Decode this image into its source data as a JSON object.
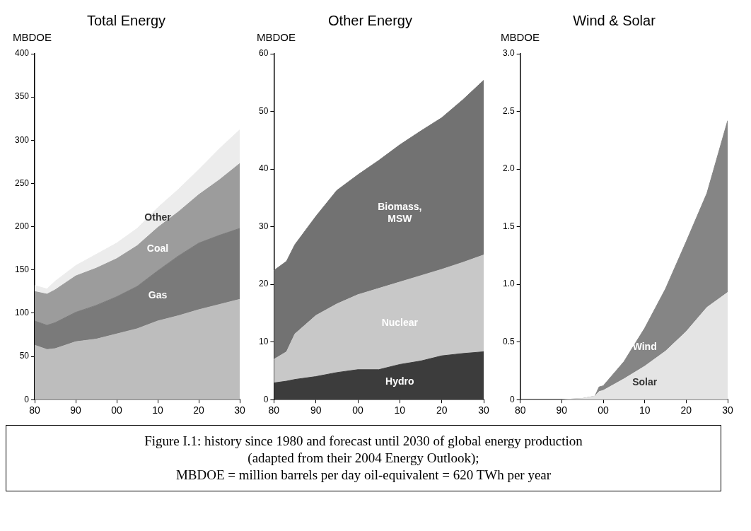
{
  "chart_data": [
    {
      "type": "area",
      "title": "Total Energy",
      "ylabel": "MBDOE",
      "stacked": true,
      "legend": false,
      "grid": false,
      "x": [
        1980,
        1983,
        1985,
        1990,
        1995,
        2000,
        2005,
        2010,
        2015,
        2020,
        2025,
        2030
      ],
      "xlim": [
        1980,
        2030
      ],
      "xticks": [
        {
          "value": 1980,
          "label": "80"
        },
        {
          "value": 1990,
          "label": "90"
        },
        {
          "value": 2000,
          "label": "00"
        },
        {
          "value": 2010,
          "label": "10"
        },
        {
          "value": 2020,
          "label": "20"
        },
        {
          "value": 2030,
          "label": "30"
        }
      ],
      "ylim": [
        0,
        400
      ],
      "yticks": [
        0,
        50,
        100,
        150,
        200,
        250,
        300,
        350,
        400
      ],
      "series": [
        {
          "color": "#bdbdbd",
          "values": [
            63,
            58,
            59,
            67,
            70,
            76,
            82,
            91,
            97,
            104,
            110,
            116
          ]
        },
        {
          "name": "Gas",
          "color": "#7a7a7a",
          "values": [
            28,
            28,
            30,
            34,
            39,
            43,
            49,
            58,
            69,
            77,
            80,
            82
          ]
        },
        {
          "name": "Coal",
          "color": "#9c9c9c",
          "values": [
            34,
            36,
            38,
            42,
            43,
            44,
            47,
            50,
            51,
            56,
            64,
            75
          ]
        },
        {
          "name": "Other",
          "color": "#ececec",
          "values": [
            7,
            6,
            10,
            12,
            16,
            18,
            20,
            23,
            26,
            29,
            36,
            39
          ]
        }
      ],
      "annotations": [
        "Figure I.1: history since 1980 and forecast until 2030 of global energy production",
        "(adapted from their 2004 Energy Outlook);",
        "MBDOE = million barrels per day oil-equivalent = 620 TWh per year"
      ]
    },
    {
      "type": "area",
      "title": "Other Energy",
      "ylabel": "MBDOE",
      "stacked": true,
      "legend": false,
      "grid": false,
      "x": [
        1980,
        1983,
        1985,
        1990,
        1995,
        2000,
        2005,
        2010,
        2015,
        2020,
        2025,
        2030
      ],
      "xlim": [
        1980,
        2030
      ],
      "xticks": [
        {
          "value": 1980,
          "label": "80"
        },
        {
          "value": 1990,
          "label": "90"
        },
        {
          "value": 2000,
          "label": "00"
        },
        {
          "value": 2010,
          "label": "10"
        },
        {
          "value": 2020,
          "label": "20"
        },
        {
          "value": 2030,
          "label": "30"
        }
      ],
      "ylim": [
        0,
        60
      ],
      "yticks": [
        0,
        10,
        20,
        30,
        40,
        50,
        60
      ],
      "series": [
        {
          "name": "Hydro",
          "color": "#3c3c3c",
          "values": [
            2.9,
            3.2,
            3.5,
            4.0,
            4.7,
            5.2,
            5.2,
            6.1,
            6.7,
            7.6,
            8.0,
            8.3
          ]
        },
        {
          "name": "Nuclear",
          "color": "#c8c8c8",
          "values": [
            4.1,
            5.1,
            7.9,
            10.6,
            11.9,
            13.0,
            14.1,
            14.3,
            14.8,
            15.0,
            15.8,
            16.8
          ]
        },
        {
          "name": "Biomass, MSW",
          "color": "#727272",
          "values": [
            15.4,
            15.7,
            15.5,
            17.2,
            19.7,
            20.8,
            22.2,
            23.8,
            25.1,
            26.3,
            28.2,
            30.3
          ]
        }
      ]
    },
    {
      "type": "area",
      "title": "Wind & Solar",
      "ylabel": "MBDOE",
      "stacked": true,
      "legend": false,
      "grid": false,
      "x": [
        1980,
        1990,
        1995,
        1998,
        1999,
        2000,
        2005,
        2010,
        2015,
        2020,
        2025,
        2030
      ],
      "xlim": [
        1980,
        2030
      ],
      "xticks": [
        {
          "value": 1980,
          "label": "80"
        },
        {
          "value": 1990,
          "label": "90"
        },
        {
          "value": 2000,
          "label": "00"
        },
        {
          "value": 2010,
          "label": "10"
        },
        {
          "value": 2020,
          "label": "20"
        },
        {
          "value": 2030,
          "label": "30"
        }
      ],
      "ylim": [
        0,
        3
      ],
      "yticks": [
        0,
        0.5,
        {
          "value": 1,
          "label": "1.0"
        },
        1.5,
        {
          "value": 2,
          "label": "2.0"
        },
        2.5,
        {
          "value": 3,
          "label": "3.0"
        }
      ],
      "series": [
        {
          "name": "Solar",
          "color": "#e4e4e4",
          "values": [
            0,
            0,
            0.01,
            0.03,
            0.07,
            0.08,
            0.18,
            0.29,
            0.42,
            0.59,
            0.8,
            0.93
          ]
        },
        {
          "name": "Wind",
          "color": "#858585",
          "values": [
            0,
            0,
            0,
            0,
            0.04,
            0.04,
            0.15,
            0.33,
            0.54,
            0.78,
            0.99,
            1.49
          ]
        }
      ]
    }
  ]
}
